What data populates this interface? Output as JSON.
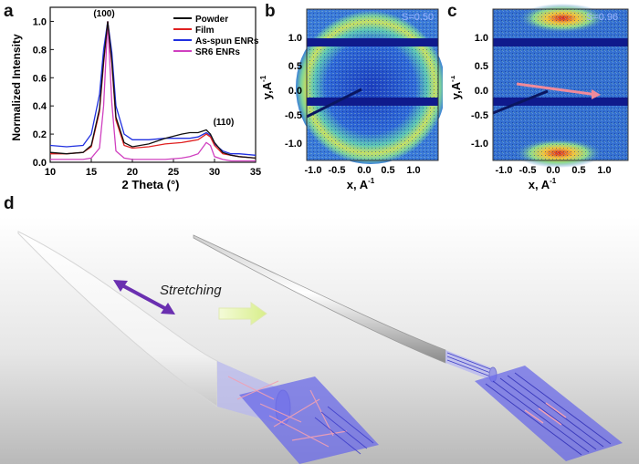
{
  "panels": {
    "a": "a",
    "b": "b",
    "c": "c",
    "d": "d"
  },
  "panel_a": {
    "chart_data": {
      "type": "line",
      "xlabel": "2 Theta (°)",
      "ylabel": "Normalized Intensity",
      "xlim": [
        10,
        35
      ],
      "ylim": [
        0.0,
        1.1
      ],
      "xticks": [
        10,
        15,
        20,
        25,
        30,
        35
      ],
      "yticks": [
        0.0,
        0.2,
        0.4,
        0.6,
        0.8,
        1.0
      ],
      "legend_position": "top-right",
      "annotations": [
        "(100)",
        "(110)"
      ],
      "series": [
        {
          "name": "Powder",
          "color": "#111111",
          "x": [
            10,
            12,
            14,
            15,
            16,
            16.5,
            17,
            17.5,
            18,
            19,
            20,
            22,
            24,
            26,
            27,
            28,
            29,
            29.5,
            30,
            31,
            32,
            33,
            35
          ],
          "y": [
            0.07,
            0.06,
            0.07,
            0.12,
            0.38,
            0.72,
            1.0,
            0.72,
            0.32,
            0.14,
            0.11,
            0.13,
            0.17,
            0.2,
            0.21,
            0.21,
            0.23,
            0.2,
            0.14,
            0.07,
            0.05,
            0.04,
            0.03
          ]
        },
        {
          "name": "Film",
          "color": "#e02020",
          "x": [
            10,
            12,
            14,
            15,
            16,
            16.5,
            17,
            17.5,
            18,
            19,
            20,
            22,
            24,
            26,
            27,
            28,
            29,
            29.5,
            30,
            31,
            32,
            33,
            35
          ],
          "y": [
            0.06,
            0.06,
            0.07,
            0.11,
            0.36,
            0.7,
            1.0,
            0.7,
            0.3,
            0.12,
            0.1,
            0.11,
            0.13,
            0.14,
            0.15,
            0.16,
            0.2,
            0.18,
            0.12,
            0.06,
            0.05,
            0.04,
            0.03
          ]
        },
        {
          "name": "As-spun ENRs",
          "color": "#2030e0",
          "x": [
            10,
            12,
            14,
            15,
            16,
            16.5,
            17,
            17.5,
            18,
            19,
            20,
            22,
            24,
            26,
            27,
            28,
            29,
            29.5,
            30,
            31,
            32,
            33,
            35
          ],
          "y": [
            0.12,
            0.11,
            0.12,
            0.2,
            0.48,
            0.8,
            1.0,
            0.78,
            0.4,
            0.2,
            0.16,
            0.16,
            0.17,
            0.17,
            0.17,
            0.18,
            0.21,
            0.19,
            0.13,
            0.08,
            0.06,
            0.06,
            0.05
          ]
        },
        {
          "name": "SR6 ENRs",
          "color": "#d040c0",
          "x": [
            10,
            12,
            14,
            15,
            16,
            16.5,
            17,
            17.5,
            18,
            19,
            20,
            22,
            24,
            26,
            27,
            28,
            29,
            29.5,
            30,
            31,
            32,
            33,
            35
          ],
          "y": [
            0.02,
            0.02,
            0.02,
            0.03,
            0.1,
            0.4,
            1.0,
            0.42,
            0.08,
            0.03,
            0.02,
            0.02,
            0.02,
            0.03,
            0.04,
            0.06,
            0.14,
            0.12,
            0.04,
            0.02,
            0.01,
            0.01,
            0.01
          ]
        }
      ]
    }
  },
  "panel_b": {
    "label": "S=0.50",
    "xlabel": "x, A",
    "xlabel_sup": "-1",
    "ylabel": "y,A",
    "ylabel_sup": "-1",
    "xticks": [
      "-1.0",
      "-0.5",
      "0.0",
      "0.5",
      "1.0"
    ],
    "yticks": [
      "1.0",
      "0.5",
      "0.0",
      "-0.5",
      "-1.0"
    ]
  },
  "panel_c": {
    "label": "S=0.96",
    "xlabel": "x, A",
    "xlabel_sup": "-1",
    "ylabel": "y,A",
    "ylabel_sup": "-1",
    "xticks": [
      "-1.0",
      "-0.5",
      "0.0",
      "0.5",
      "1.0"
    ],
    "yticks": [
      "1.0",
      "0.5",
      "0.0",
      "-0.5",
      "-1.0"
    ]
  },
  "panel_d": {
    "stretch_label": "Stretching",
    "colors": {
      "background_top": "#ffffff",
      "background_bottom": "#bdbdbd",
      "arrow_purple": "#6a2fb0",
      "arrow_green": "#e6f4a8",
      "mesh": "#6a6ae8"
    }
  }
}
